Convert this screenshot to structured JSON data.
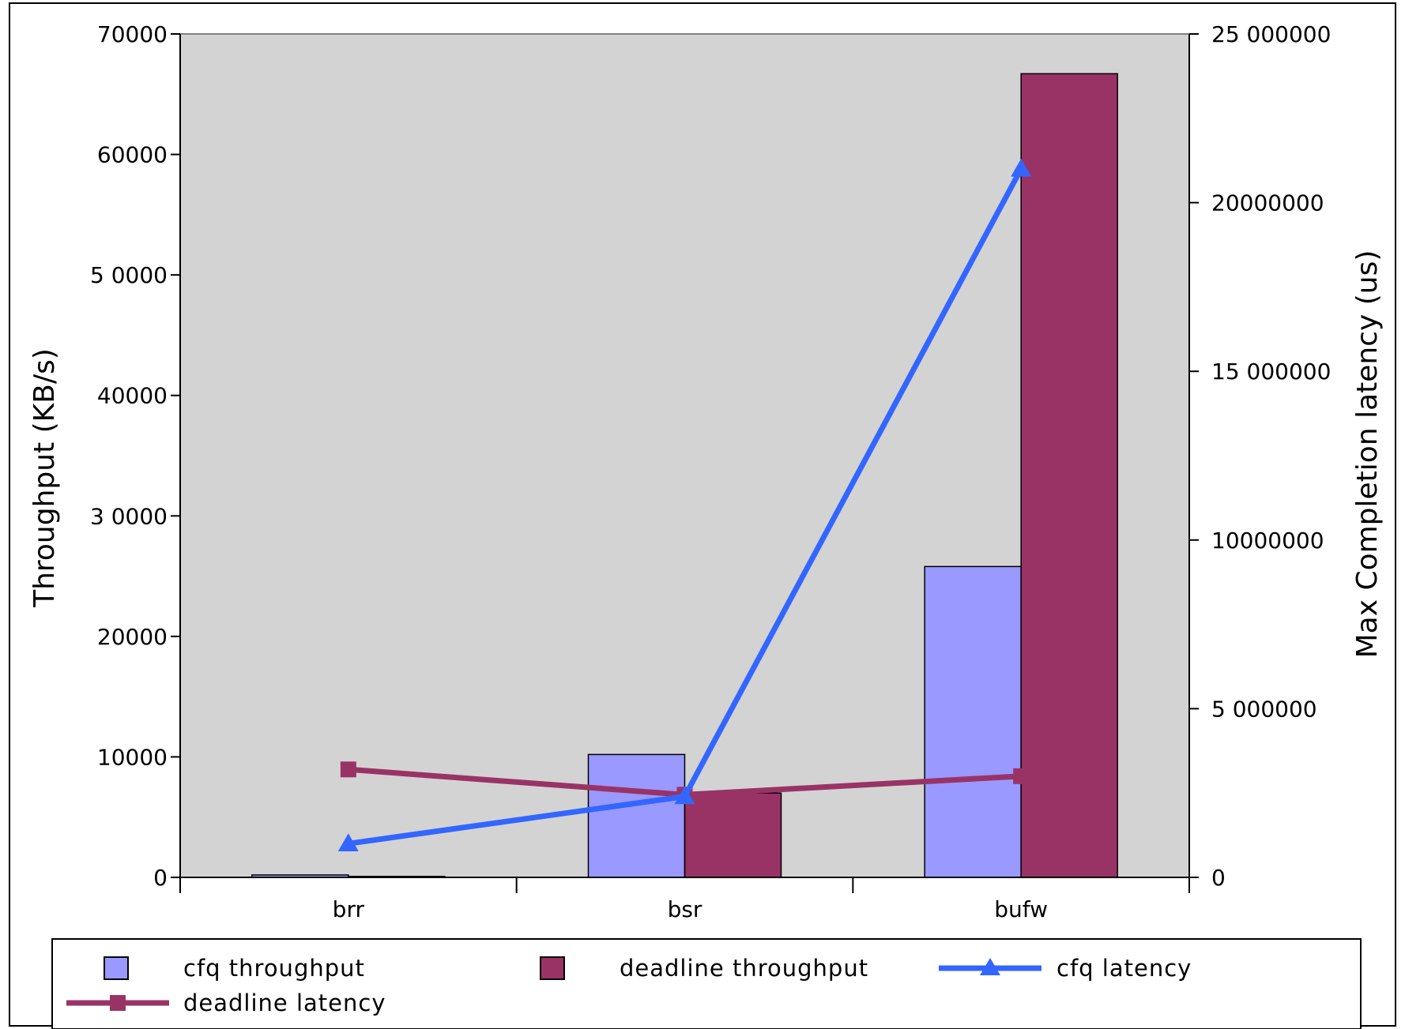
{
  "chart_data": {
    "type": "bar",
    "categories": [
      "brr",
      "bsr",
      "bufw"
    ],
    "series": [
      {
        "name": "cfq throughput",
        "type": "bar",
        "axis": "left",
        "color": "#9999ff",
        "values": [
          200,
          10200,
          25800
        ]
      },
      {
        "name": "deadline throughput",
        "type": "bar",
        "axis": "left",
        "color": "#993366",
        "values": [
          80,
          7000,
          66700
        ]
      },
      {
        "name": "cfq latency",
        "type": "line",
        "axis": "right",
        "marker": "triangle",
        "color": "#3366ff",
        "values": [
          1000000,
          2400000,
          21000000
        ]
      },
      {
        "name": "deadline latency",
        "type": "line",
        "axis": "right",
        "marker": "square",
        "color": "#993366",
        "values": [
          3200000,
          2450000,
          3000000
        ]
      }
    ],
    "ylabel": "Throughput (KB/s)",
    "ylabel_right": "Max Completion latency (us)",
    "ylim": [
      0,
      70000
    ],
    "ylim_right": [
      0,
      25000000
    ],
    "yticks": [
      "0",
      "10000",
      "20000",
      "3 0000",
      "40000",
      "5 0000",
      "60000",
      "70000"
    ],
    "yticks_right": [
      "0",
      "5 000000",
      "10000000",
      "15 000000",
      "20000000",
      "25 000000"
    ],
    "plot_background": "#d3d3d3",
    "grid": false,
    "legend_position": "bottom"
  }
}
